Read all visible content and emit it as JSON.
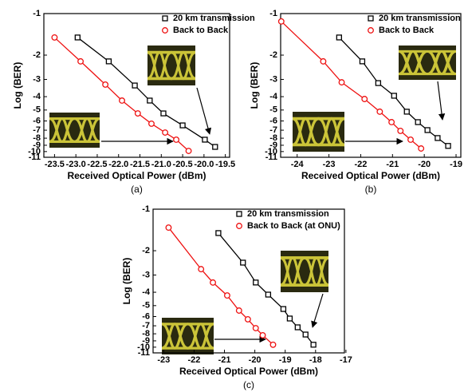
{
  "chart_data": [
    {
      "type": "scatter",
      "caption": "(a)",
      "x_label": "Received Optical Power (dBm)",
      "y_label": "Log (BER)",
      "xlim": [
        -23.75,
        -19.4
      ],
      "xticks": [
        -23.5,
        {
          "value": -23,
          "label": "-23.0"
        },
        -22.5,
        {
          "value": -22,
          "label": "-22.0"
        },
        -21.5,
        {
          "value": -21,
          "label": "-21.0"
        },
        -20.5,
        {
          "value": -20,
          "label": "-20.0"
        },
        -19.5
      ],
      "ylim": [
        -1,
        -11
      ],
      "yticks": [
        -1,
        -2,
        -3,
        -4,
        -5,
        -6,
        -7,
        -8,
        -9,
        -10,
        -11
      ],
      "yscale": "log",
      "series": [
        {
          "name": "20 km transmission",
          "color": "#000000",
          "marker": "square",
          "x": [
            -22.96,
            -22.23,
            -21.62,
            -21.27,
            -20.95,
            -20.5,
            -19.98,
            -19.74
          ],
          "values": [
            -1.49,
            -2.22,
            -3.32,
            -4.27,
            -5.29,
            -6.46,
            -8.2,
            -9.25
          ]
        },
        {
          "name": "Back to Back",
          "color": "#ee1111",
          "marker": "circle",
          "x": [
            -23.5,
            -22.89,
            -22.31,
            -21.92,
            -21.55,
            -21.23,
            -20.91,
            -20.65,
            -20.36
          ],
          "values": [
            -1.49,
            -2.22,
            -3.27,
            -4.27,
            -5.29,
            -6.28,
            -7.28,
            -8.2,
            -9.89
          ]
        }
      ]
    },
    {
      "type": "scatter",
      "caption": "(b)",
      "x_label": "Received Optical Power (dBm)",
      "y_label": "Log (BER)",
      "xlim": [
        -24.52,
        -18.85
      ],
      "xticks": [
        -24,
        -23,
        -22,
        -21,
        -20,
        -19
      ],
      "ylim": [
        -1,
        -11
      ],
      "yticks": [
        -1,
        -2,
        -3,
        -4,
        -5,
        -6,
        -7,
        -8,
        -9,
        -10,
        -11
      ],
      "yscale": "log",
      "series": [
        {
          "name": "20 km transmission",
          "color": "#000000",
          "marker": "square",
          "x": [
            -22.68,
            -21.95,
            -21.45,
            -20.95,
            -20.55,
            -20.2,
            -19.9,
            -19.58,
            -19.25
          ],
          "values": [
            -1.49,
            -2.22,
            -3.19,
            -3.94,
            -5.14,
            -6.12,
            -6.99,
            -7.98,
            -9.1
          ]
        },
        {
          "name": "Back to Back",
          "color": "#ee1111",
          "marker": "circle",
          "x": [
            -24.5,
            -23.18,
            -22.6,
            -21.88,
            -21.4,
            -21.03,
            -20.75,
            -20.43,
            -20.1
          ],
          "values": [
            -1.14,
            -2.22,
            -3.15,
            -4.16,
            -5.14,
            -6.12,
            -7.08,
            -8.2,
            -9.5
          ]
        }
      ]
    },
    {
      "type": "scatter",
      "caption": "(c)",
      "x_label": "Received Optical Power (dBm)",
      "y_label": "Log (BER)",
      "xlim": [
        -23.35,
        -17.05
      ],
      "xticks": [
        -23,
        -22,
        -21,
        -20,
        -19,
        -18,
        -17
      ],
      "ylim": [
        -1,
        -11
      ],
      "yticks": [
        -1,
        -2,
        -3,
        -4,
        -5,
        -6,
        -7,
        -8,
        -9,
        -10,
        -11
      ],
      "yscale": "log",
      "series": [
        {
          "name": "20 km transmission",
          "color": "#000000",
          "marker": "square",
          "x": [
            -21.2,
            -20.39,
            -19.97,
            -19.56,
            -19.06,
            -18.85,
            -18.59,
            -18.33,
            -18.07
          ],
          "values": [
            -1.49,
            -2.44,
            -3.4,
            -4.16,
            -5.29,
            -6.2,
            -7.18,
            -8.1,
            -9.6
          ]
        },
        {
          "name": "Back to Back (at ONU)",
          "color": "#ee1111",
          "marker": "circle",
          "x": [
            -22.84,
            -21.77,
            -21.38,
            -20.91,
            -20.52,
            -20.23,
            -19.97,
            -19.74,
            -19.4
          ],
          "values": [
            -1.36,
            -2.72,
            -3.4,
            -4.22,
            -5.43,
            -6.28,
            -7.28,
            -8.2,
            -9.6
          ]
        }
      ]
    }
  ]
}
